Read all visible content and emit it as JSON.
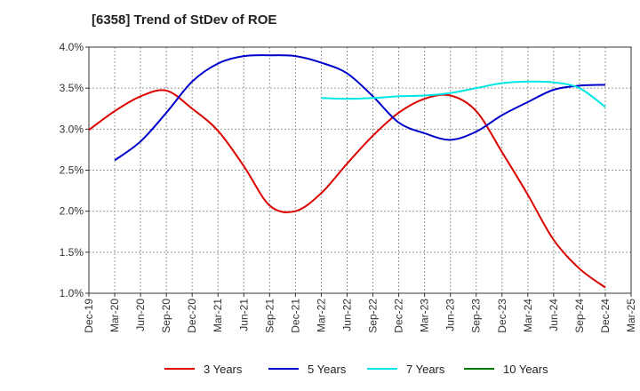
{
  "chart_data": {
    "type": "line",
    "title": "[6358]  Trend of StDev of ROE",
    "xlabel": "",
    "ylabel": "",
    "ylim": [
      1.0,
      4.0
    ],
    "y_ticks": [
      "1.0%",
      "1.5%",
      "2.0%",
      "2.5%",
      "3.0%",
      "3.5%",
      "4.0%"
    ],
    "categories": [
      "Dec-19",
      "Mar-20",
      "Jun-20",
      "Sep-20",
      "Dec-20",
      "Mar-21",
      "Jun-21",
      "Sep-21",
      "Dec-21",
      "Mar-22",
      "Jun-22",
      "Sep-22",
      "Dec-22",
      "Mar-23",
      "Jun-23",
      "Sep-23",
      "Dec-23",
      "Mar-24",
      "Jun-24",
      "Sep-24",
      "Dec-24",
      "Mar-25"
    ],
    "grid": true,
    "legend_position": "bottom",
    "series": [
      {
        "name": "3 Years",
        "color": "#dd0000",
        "values": [
          2.99,
          3.22,
          3.4,
          3.47,
          3.25,
          2.98,
          2.55,
          2.07,
          2.0,
          2.22,
          2.58,
          2.92,
          3.2,
          3.37,
          3.41,
          3.22,
          2.72,
          2.2,
          1.65,
          1.3,
          1.07,
          null
        ]
      },
      {
        "name": "5 Years",
        "color": "#0000cc",
        "values": [
          null,
          2.62,
          2.85,
          3.2,
          3.58,
          3.8,
          3.89,
          3.9,
          3.89,
          3.81,
          3.68,
          3.4,
          3.08,
          2.95,
          2.87,
          2.97,
          3.17,
          3.33,
          3.48,
          3.53,
          3.54,
          null
        ]
      },
      {
        "name": "7 Years",
        "color": "#00e5e5",
        "values": [
          null,
          null,
          null,
          null,
          null,
          null,
          null,
          null,
          null,
          3.38,
          3.37,
          3.38,
          3.4,
          3.41,
          3.44,
          3.5,
          3.56,
          3.58,
          3.57,
          3.5,
          3.27,
          null
        ]
      },
      {
        "name": "10 Years",
        "color": "#007700",
        "values": [
          null,
          null,
          null,
          null,
          null,
          null,
          null,
          null,
          null,
          null,
          null,
          null,
          null,
          null,
          null,
          null,
          null,
          null,
          null,
          null,
          null,
          null
        ]
      }
    ]
  }
}
